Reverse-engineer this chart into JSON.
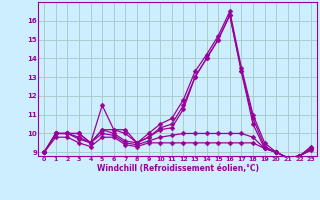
{
  "x": [
    0,
    1,
    2,
    3,
    4,
    5,
    6,
    7,
    8,
    9,
    10,
    11,
    12,
    13,
    14,
    15,
    16,
    17,
    18,
    19,
    20,
    21,
    22,
    23
  ],
  "lines": [
    [
      9,
      10,
      10,
      10,
      9.5,
      11.5,
      10.2,
      10.2,
      9.5,
      10,
      10.5,
      10.8,
      11.8,
      13.3,
      14.2,
      15.2,
      16.5,
      13.5,
      11.0,
      9.5,
      9.0,
      8.7,
      8.8,
      9.3
    ],
    [
      9,
      10,
      10,
      10,
      9.5,
      10.2,
      10.2,
      10.0,
      9.5,
      9.8,
      10.3,
      10.5,
      11.5,
      13.0,
      14.0,
      15.0,
      16.3,
      13.3,
      10.8,
      9.3,
      9.0,
      8.7,
      8.8,
      9.2
    ],
    [
      9,
      10,
      10,
      9.8,
      9.5,
      10.2,
      10.0,
      9.6,
      9.5,
      9.8,
      10.2,
      10.3,
      11.3,
      13.0,
      14.0,
      15.0,
      16.3,
      13.3,
      10.5,
      9.2,
      9.0,
      8.7,
      8.8,
      9.2
    ],
    [
      9,
      10,
      10,
      9.7,
      9.5,
      10.0,
      9.9,
      9.5,
      9.4,
      9.6,
      9.8,
      9.9,
      10.0,
      10.0,
      10.0,
      10.0,
      10.0,
      10.0,
      9.8,
      9.2,
      9.0,
      8.7,
      8.8,
      9.2
    ],
    [
      9,
      9.8,
      9.8,
      9.5,
      9.3,
      9.8,
      9.8,
      9.4,
      9.3,
      9.5,
      9.5,
      9.5,
      9.5,
      9.5,
      9.5,
      9.5,
      9.5,
      9.5,
      9.5,
      9.2,
      9.0,
      8.7,
      8.8,
      9.1
    ]
  ],
  "line_color": "#990099",
  "bg_color": "#cceeff",
  "grid_color": "#aacccc",
  "xlabel": "Windchill (Refroidissement éolien,°C)",
  "ylim_min": 8.8,
  "ylim_max": 17.0,
  "yticks": [
    9,
    10,
    11,
    12,
    13,
    14,
    15,
    16
  ],
  "xticks": [
    0,
    1,
    2,
    3,
    4,
    5,
    6,
    7,
    8,
    9,
    10,
    11,
    12,
    13,
    14,
    15,
    16,
    17,
    18,
    19,
    20,
    21,
    22,
    23
  ],
  "markersize": 2.5,
  "linewidth": 0.9
}
